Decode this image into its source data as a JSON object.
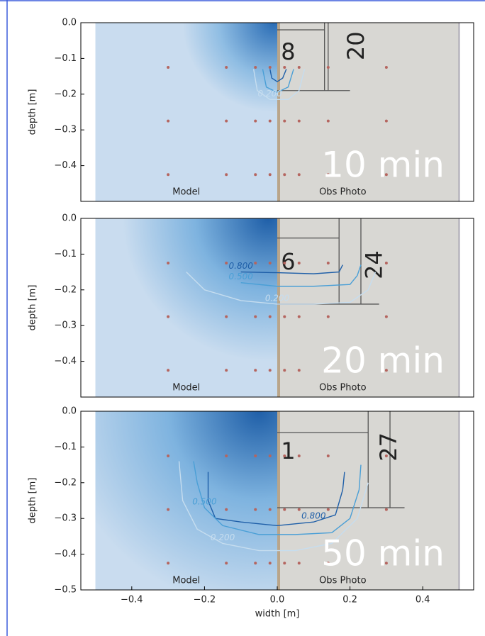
{
  "chart_data": [
    {
      "type": "contour",
      "ylabel": "depth [m]",
      "xlim": [
        -0.54,
        0.54
      ],
      "ylim": [
        -0.5,
        0
      ],
      "yticks": [
        {
          "value": 0,
          "label": "0.0"
        },
        {
          "value": -0.1,
          "label": "−0.1"
        },
        {
          "value": -0.2,
          "label": "−0.2"
        },
        {
          "value": -0.3,
          "label": "−0.3"
        },
        {
          "value": -0.4,
          "label": "−0.4"
        }
      ],
      "panel_label": "10 min",
      "model_label": "Model",
      "photo_label": "Obs Photo",
      "photo_text": [
        "8",
        "20"
      ],
      "sensors": {
        "color": "#b5655f",
        "x": [
          -0.3,
          -0.14,
          -0.06,
          -0.02,
          0.02,
          0.06,
          0.14,
          0.3,
          -0.3,
          -0.14,
          -0.06,
          -0.02,
          0.02,
          0.06,
          0.14,
          0.3,
          -0.3,
          -0.14,
          -0.06,
          -0.02,
          0.02,
          0.06,
          0.14,
          0.3
        ],
        "y": [
          -0.125,
          -0.125,
          -0.125,
          -0.125,
          -0.125,
          -0.125,
          -0.125,
          -0.125,
          -0.275,
          -0.275,
          -0.275,
          -0.275,
          -0.275,
          -0.275,
          -0.275,
          -0.275,
          -0.425,
          -0.425,
          -0.425,
          -0.425,
          -0.425,
          -0.425,
          -0.425,
          -0.425
        ]
      },
      "series": [
        {
          "color": "#1f5fa8",
          "x": [
            -0.02,
            -0.015,
            0.0,
            0.015,
            0.025
          ],
          "y": [
            -0.13,
            -0.155,
            -0.165,
            -0.155,
            -0.13
          ]
        },
        {
          "color": "#4a9fd6",
          "x": [
            -0.04,
            -0.03,
            0.0,
            0.03,
            0.045
          ],
          "y": [
            -0.13,
            -0.18,
            -0.195,
            -0.18,
            -0.13
          ]
        },
        {
          "name": "0.200",
          "color": "#c6ddef",
          "x": [
            -0.065,
            -0.055,
            -0.02,
            0.03,
            0.06,
            0.075
          ],
          "y": [
            -0.13,
            -0.19,
            -0.215,
            -0.215,
            -0.19,
            -0.13
          ]
        }
      ]
    },
    {
      "type": "contour",
      "ylabel": "depth [m]",
      "xlim": [
        -0.54,
        0.54
      ],
      "ylim": [
        -0.5,
        0
      ],
      "yticks": [
        {
          "value": 0,
          "label": "0.0"
        },
        {
          "value": -0.1,
          "label": "−0.1"
        },
        {
          "value": -0.2,
          "label": "−0.2"
        },
        {
          "value": -0.3,
          "label": "−0.3"
        },
        {
          "value": -0.4,
          "label": "−0.4"
        }
      ],
      "panel_label": "20 min",
      "model_label": "Model",
      "photo_label": "Obs Photo",
      "photo_text": [
        "6",
        "24"
      ],
      "sensors": {
        "color": "#b5655f",
        "x": [
          -0.3,
          -0.14,
          -0.06,
          -0.02,
          0.02,
          0.06,
          0.14,
          0.3,
          -0.3,
          -0.14,
          -0.06,
          -0.02,
          0.02,
          0.06,
          0.14,
          0.3,
          -0.3,
          -0.14,
          -0.06,
          -0.02,
          0.02,
          0.06,
          0.14,
          0.3
        ],
        "y": [
          -0.125,
          -0.125,
          -0.125,
          -0.125,
          -0.125,
          -0.125,
          -0.125,
          -0.125,
          -0.275,
          -0.275,
          -0.275,
          -0.275,
          -0.275,
          -0.275,
          -0.275,
          -0.275,
          -0.425,
          -0.425,
          -0.425,
          -0.425,
          -0.425,
          -0.425,
          -0.425,
          -0.425
        ]
      },
      "series": [
        {
          "name": "0.800",
          "color": "#1f5fa8",
          "x": [
            -0.1,
            0.0,
            0.1,
            0.17,
            0.18
          ],
          "y": [
            -0.15,
            -0.152,
            -0.155,
            -0.15,
            -0.13
          ]
        },
        {
          "name": "0.500",
          "color": "#4a9fd6",
          "x": [
            -0.1,
            0.0,
            0.1,
            0.2,
            0.22,
            0.23
          ],
          "y": [
            -0.18,
            -0.19,
            -0.19,
            -0.185,
            -0.16,
            -0.13
          ]
        },
        {
          "name": "0.200",
          "color": "#c6ddef",
          "x": [
            -0.25,
            -0.2,
            -0.1,
            0.0,
            0.1,
            0.2,
            0.25,
            0.27
          ],
          "y": [
            -0.15,
            -0.2,
            -0.23,
            -0.24,
            -0.24,
            -0.235,
            -0.2,
            -0.15
          ]
        }
      ]
    },
    {
      "type": "contour",
      "ylabel": "depth [m]",
      "xlabel": "width [m]",
      "xlim": [
        -0.54,
        0.54
      ],
      "ylim": [
        -0.5,
        0
      ],
      "xticks": [
        {
          "value": -0.4,
          "label": "−0.4"
        },
        {
          "value": -0.2,
          "label": "−0.2"
        },
        {
          "value": 0,
          "label": "0.0"
        },
        0.2,
        0.4
      ],
      "yticks": [
        {
          "value": 0,
          "label": "0.0"
        },
        {
          "value": -0.1,
          "label": "−0.1"
        },
        {
          "value": -0.2,
          "label": "−0.2"
        },
        {
          "value": -0.3,
          "label": "−0.3"
        },
        {
          "value": -0.4,
          "label": "−0.4"
        },
        {
          "value": -0.5,
          "label": "−0.5"
        }
      ],
      "panel_label": "50 min",
      "model_label": "Model",
      "photo_label": "Obs Photo",
      "photo_text": [
        "1",
        "27"
      ],
      "sensors": {
        "color": "#b5655f",
        "x": [
          -0.3,
          -0.14,
          -0.06,
          -0.02,
          0.02,
          0.06,
          0.14,
          0.3,
          -0.3,
          -0.14,
          -0.06,
          -0.02,
          0.02,
          0.06,
          0.14,
          0.3,
          -0.3,
          -0.14,
          -0.06,
          -0.02,
          0.02,
          0.06,
          0.14,
          0.3
        ],
        "y": [
          -0.125,
          -0.125,
          -0.125,
          -0.125,
          -0.125,
          -0.125,
          -0.125,
          -0.125,
          -0.275,
          -0.275,
          -0.275,
          -0.275,
          -0.275,
          -0.275,
          -0.275,
          -0.275,
          -0.425,
          -0.425,
          -0.425,
          -0.425,
          -0.425,
          -0.425,
          -0.425,
          -0.425
        ]
      },
      "series": [
        {
          "name": "0.800",
          "color": "#1f5fa8",
          "x": [
            -0.19,
            -0.19,
            -0.17,
            -0.1,
            0.0,
            0.1,
            0.16,
            0.18,
            0.185
          ],
          "y": [
            -0.17,
            -0.25,
            -0.3,
            -0.31,
            -0.32,
            -0.31,
            -0.29,
            -0.22,
            -0.17
          ]
        },
        {
          "name": "0.500",
          "color": "#4a9fd6",
          "x": [
            -0.23,
            -0.22,
            -0.2,
            -0.15,
            -0.05,
            0.05,
            0.15,
            0.2,
            0.225,
            0.23
          ],
          "y": [
            -0.14,
            -0.2,
            -0.27,
            -0.32,
            -0.345,
            -0.345,
            -0.34,
            -0.3,
            -0.22,
            -0.15
          ]
        },
        {
          "name": "0.200",
          "color": "#c6ddef",
          "x": [
            -0.27,
            -0.26,
            -0.22,
            -0.15,
            -0.05,
            0.05,
            0.15,
            0.22,
            0.25
          ],
          "y": [
            -0.14,
            -0.25,
            -0.33,
            -0.37,
            -0.39,
            -0.39,
            -0.37,
            -0.3,
            -0.2
          ]
        }
      ]
    }
  ]
}
